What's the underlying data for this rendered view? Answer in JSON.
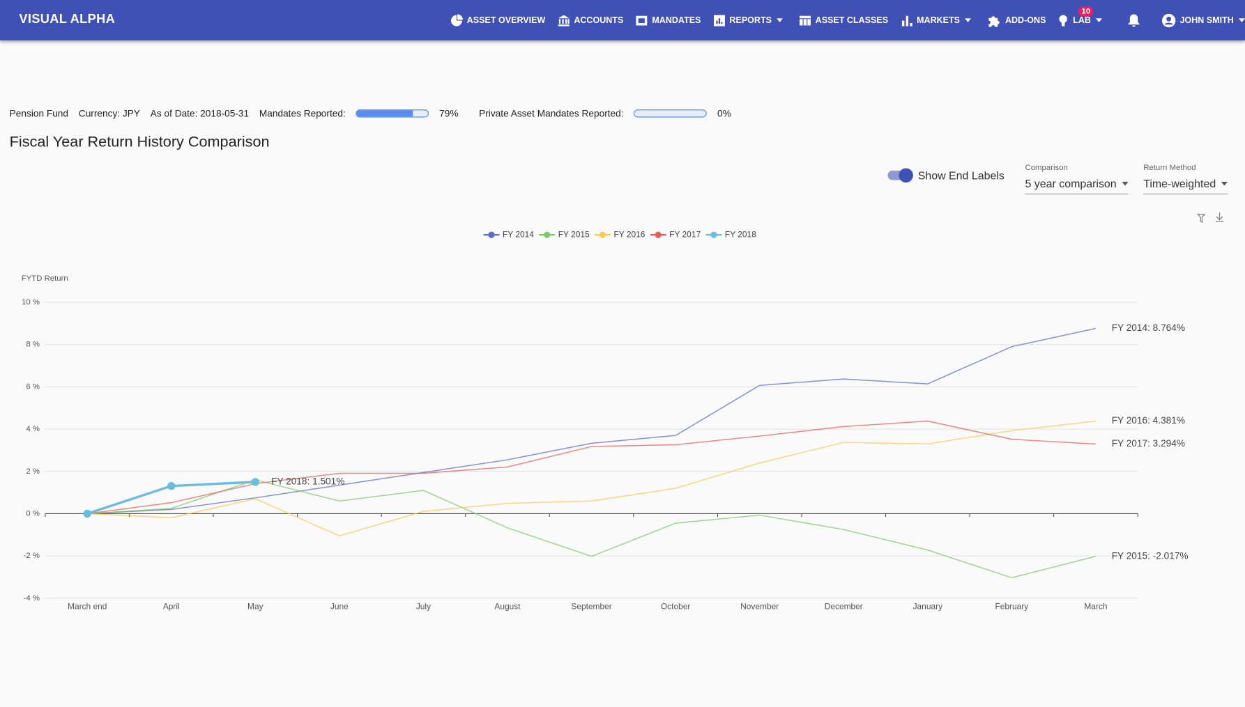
{
  "nav": {
    "brand": "VISUAL ALPHA",
    "items": [
      "ASSET OVERVIEW",
      "ACCOUNTS",
      "MANDATES",
      "REPORTS",
      "ASSET CLASSES",
      "MARKETS",
      "ADD-ONS",
      "LAB"
    ],
    "notifications": 10,
    "user": "JOHN SMITH"
  },
  "info": {
    "fund": "Pension Fund",
    "currency": "Currency: JPY",
    "as_of": "As of Date: 2018-05-31",
    "mandates": {
      "label": "Mandates Reported:",
      "value": 79,
      "value_label": "79%"
    },
    "private": {
      "label": "Private Asset Mandates Reported:",
      "value": 0,
      "value_label": "0%"
    }
  },
  "page_title": "Fiscal Year Return History Comparison",
  "controls": {
    "end_labels_toggle": {
      "label": "Show End Labels",
      "on": true
    },
    "comparison": {
      "label": "Comparison",
      "value": "5 year comparison"
    },
    "return_method": {
      "label": "Return Method",
      "value": "Time-weighted"
    }
  },
  "chart_data": {
    "type": "line",
    "y_label": "FYTD Return",
    "categories": [
      "March end",
      "April",
      "May",
      "June",
      "July",
      "August",
      "September",
      "October",
      "November",
      "December",
      "January",
      "February",
      "March"
    ],
    "series": [
      {
        "name": "FY 2014",
        "color": "#5c6fc4",
        "values": [
          0,
          0.2,
          0.75,
          1.35,
          1.95,
          2.55,
          3.33,
          3.7,
          6.07,
          6.37,
          6.14,
          7.9,
          8.764
        ],
        "end_label": "FY 2014: 8.764%"
      },
      {
        "name": "FY 2015",
        "color": "#7cc96a",
        "values": [
          0,
          0.25,
          1.6,
          0.6,
          1.1,
          -0.67,
          -2.02,
          -0.45,
          -0.07,
          -0.75,
          -1.72,
          -3.03,
          -2.017
        ],
        "end_label": "FY 2015: -2.017%"
      },
      {
        "name": "FY 2016",
        "color": "#fbc850",
        "values": [
          0,
          -0.19,
          0.71,
          -1.05,
          0.11,
          0.49,
          0.6,
          1.2,
          2.4,
          3.37,
          3.3,
          3.93,
          4.381
        ],
        "end_label": "FY 2016: 4.381%"
      },
      {
        "name": "FY 2017",
        "color": "#ea5c5c",
        "values": [
          0,
          0.52,
          1.42,
          1.91,
          1.91,
          2.21,
          3.18,
          3.26,
          3.67,
          4.12,
          4.38,
          3.52,
          3.294
        ],
        "end_label": "FY 2017: 3.294%"
      },
      {
        "name": "FY 2018",
        "color": "#6bbde0",
        "values": [
          0,
          1.31,
          1.501,
          null,
          null,
          null,
          null,
          null,
          null,
          null,
          null,
          null,
          null
        ],
        "end_label": "FY 2018: 1.501%",
        "markers": true
      }
    ],
    "ylim": [
      -4,
      10
    ],
    "yticks": [
      {
        "value": -4,
        "label": "-4 %"
      },
      {
        "value": -2,
        "label": "-2 %"
      },
      {
        "value": 0,
        "label": "0 %"
      },
      {
        "value": 2,
        "label": "2 %"
      },
      {
        "value": 4,
        "label": "4 %"
      },
      {
        "value": 6,
        "label": "6 %"
      },
      {
        "value": 8,
        "label": "8 %"
      },
      {
        "value": 10,
        "label": "10 %"
      }
    ],
    "grid": true,
    "legend": "top"
  }
}
